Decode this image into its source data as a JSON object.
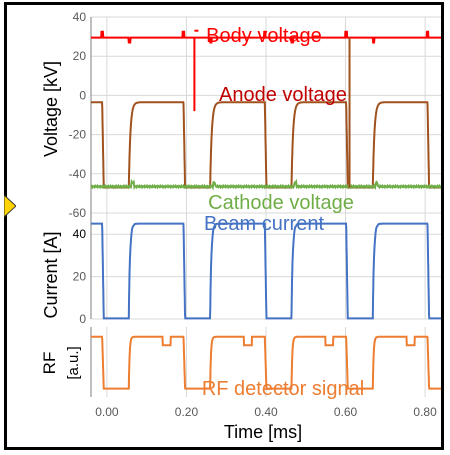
{
  "chart_data": {
    "type": "line",
    "xlabel": "Time [ms]",
    "xlim": [
      -0.04,
      0.84
    ],
    "xticks": [
      "0.00",
      "0.20",
      "0.40",
      "0.60",
      "0.80"
    ],
    "period_ms": 0.2045,
    "panels": [
      {
        "name": "voltage",
        "ylabel": "Voltage [kV]",
        "ylim": [
          -60,
          40
        ],
        "yticks": [
          "40",
          "20",
          "0",
          "-20",
          "-40",
          "-60"
        ],
        "series": [
          {
            "name": "Body voltage",
            "color": "#ff0000",
            "baseline": 29.5,
            "spikes": [
              0.22,
              0.61
            ]
          },
          {
            "name": "Anode voltage",
            "color": "#a0521e",
            "high": -3.5,
            "low": -47,
            "low_start": 0.008,
            "low_end": 0.075
          },
          {
            "name": "Cathode voltage",
            "color": "#6fad47",
            "level": -46.5
          }
        ]
      },
      {
        "name": "current",
        "ylabel": "Current [A]",
        "ylim": [
          0,
          50
        ],
        "yticks": [
          "40",
          "20",
          "0"
        ],
        "series": [
          {
            "name": "Beam current",
            "color": "#4472c4",
            "high": 45,
            "low": 0.3,
            "low_start": 0.008,
            "low_end": 0.075
          }
        ]
      },
      {
        "name": "rf",
        "ylabel": "RF [a.u.]",
        "ylim": [
          0,
          1
        ],
        "yticks": [],
        "series": [
          {
            "name": "RF detector signal",
            "color": "#ed7d31",
            "high": 0.86,
            "low": 0.12,
            "low_start": 0.008,
            "low_end": 0.075
          }
        ]
      }
    ]
  }
}
